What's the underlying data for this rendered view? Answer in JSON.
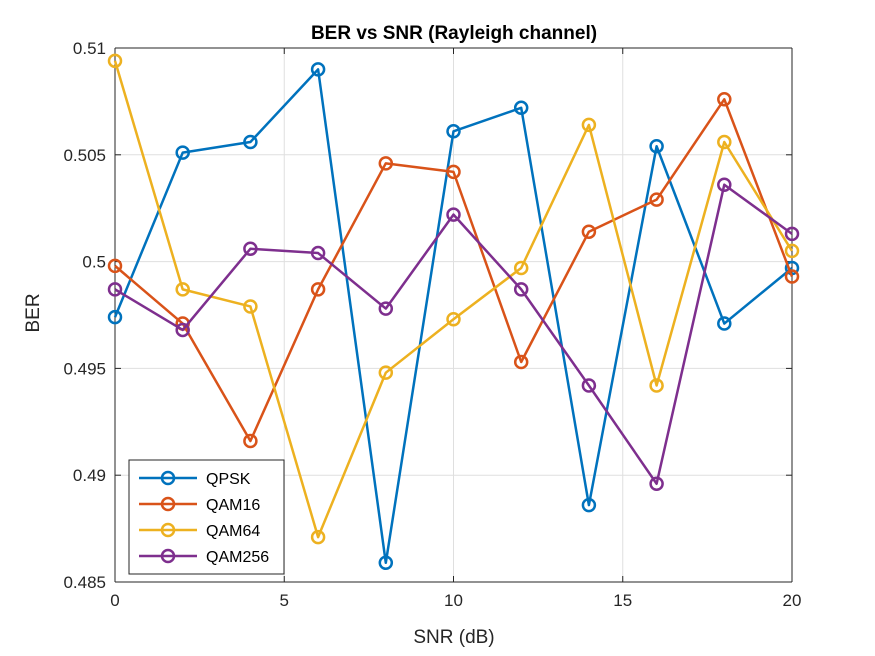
{
  "chart_data": {
    "type": "line",
    "title": "BER vs SNR (Rayleigh channel)",
    "xlabel": "SNR (dB)",
    "ylabel": "BER",
    "x": [
      0,
      2,
      4,
      6,
      8,
      10,
      12,
      14,
      16,
      18,
      20
    ],
    "xlim": [
      0,
      20
    ],
    "ylim": [
      0.485,
      0.51
    ],
    "xticks": [
      0,
      5,
      10,
      15,
      20
    ],
    "xtick_labels": [
      "0",
      "5",
      "10",
      "15",
      "20"
    ],
    "yticks": [
      0.485,
      0.49,
      0.495,
      0.5,
      0.505,
      0.51
    ],
    "ytick_labels": [
      "0.485",
      "0.49",
      "0.495",
      "0.5",
      "0.505",
      "0.51"
    ],
    "grid": true,
    "legend_position": "bottom-left",
    "marker": "circle",
    "series": [
      {
        "name": "QPSK",
        "color": "#0072BD",
        "values": [
          0.4974,
          0.5051,
          0.5056,
          0.509,
          0.4859,
          0.5061,
          0.5072,
          0.4886,
          0.5054,
          0.4971,
          0.4997
        ]
      },
      {
        "name": "QAM16",
        "color": "#D95319",
        "values": [
          0.4998,
          0.4971,
          0.4916,
          0.4987,
          0.5046,
          0.5042,
          0.4953,
          0.5014,
          0.5029,
          0.5076,
          0.4993
        ]
      },
      {
        "name": "QAM64",
        "color": "#EDB120",
        "values": [
          0.5094,
          0.4987,
          0.4979,
          0.4871,
          0.4948,
          0.4973,
          0.4997,
          0.5064,
          0.4942,
          0.5056,
          0.5005
        ]
      },
      {
        "name": "QAM256",
        "color": "#7E2F8E",
        "values": [
          0.4987,
          0.4968,
          0.5006,
          0.5004,
          0.4978,
          0.5022,
          0.4987,
          0.4942,
          0.4896,
          0.5036,
          0.5013
        ]
      }
    ]
  }
}
